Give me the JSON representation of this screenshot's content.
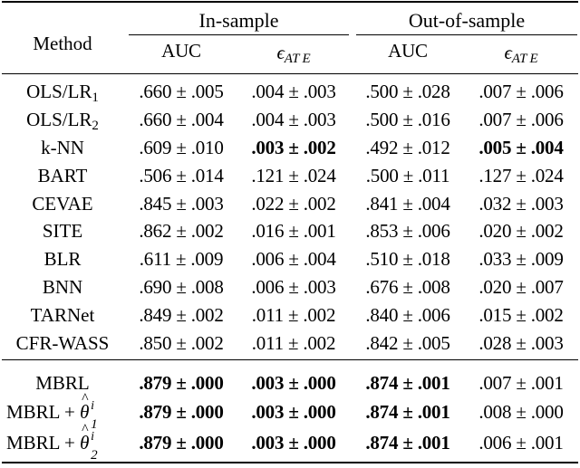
{
  "header": {
    "group_in": "In-sample",
    "group_out": "Out-of-sample",
    "method": "Method",
    "auc": "AUC",
    "eps_symbol": "ϵ",
    "eps_sub": "AT E"
  },
  "rows": [
    {
      "method": "OLS/LR",
      "method_sub": "1",
      "in_auc": ".660 ± .005",
      "in_eps": ".004 ± .003",
      "out_auc": ".500 ± .028",
      "out_eps": ".007 ± .006",
      "bold": []
    },
    {
      "method": "OLS/LR",
      "method_sub": "2",
      "in_auc": ".660 ± .004",
      "in_eps": ".004 ± .003",
      "out_auc": ".500 ± .016",
      "out_eps": ".007 ± .006",
      "bold": []
    },
    {
      "method": "k-NN",
      "method_sub": "",
      "in_auc": ".609 ± .010",
      "in_eps": ".003 ± .002",
      "out_auc": ".492 ± .012",
      "out_eps": ".005 ± .004",
      "bold": [
        "in_eps",
        "out_eps"
      ]
    },
    {
      "method": "BART",
      "method_sub": "",
      "in_auc": ".506 ± .014",
      "in_eps": ".121 ± .024",
      "out_auc": ".500 ± .011",
      "out_eps": ".127 ± .024",
      "bold": []
    },
    {
      "method": "CEVAE",
      "method_sub": "",
      "in_auc": ".845 ± .003",
      "in_eps": ".022 ± .002",
      "out_auc": ".841 ± .004",
      "out_eps": ".032 ± .003",
      "bold": []
    },
    {
      "method": "SITE",
      "method_sub": "",
      "in_auc": ".862 ± .002",
      "in_eps": ".016 ± .001",
      "out_auc": ".853 ± .006",
      "out_eps": ".020 ± .002",
      "bold": []
    },
    {
      "method": "BLR",
      "method_sub": "",
      "in_auc": ".611 ± .009",
      "in_eps": ".006 ± .004",
      "out_auc": ".510 ± .018",
      "out_eps": ".033 ± .009",
      "bold": []
    },
    {
      "method": "BNN",
      "method_sub": "",
      "in_auc": ".690 ± .008",
      "in_eps": ".006 ± .003",
      "out_auc": ".676 ± .008",
      "out_eps": ".020 ± .007",
      "bold": []
    },
    {
      "method": "TARNet",
      "method_sub": "",
      "in_auc": ".849 ± .002",
      "in_eps": ".011 ± .002",
      "out_auc": ".840 ± .006",
      "out_eps": ".015 ± .002",
      "bold": []
    },
    {
      "method": "CFR-WASS",
      "method_sub": "",
      "in_auc": ".850 ± .002",
      "in_eps": ".011 ± .002",
      "out_auc": ".842 ± .005",
      "out_eps": ".028 ± .003",
      "bold": []
    },
    {
      "method": "MBRL",
      "method_sub": "",
      "in_auc": ".879 ± .000",
      "in_eps": ".003 ± .000",
      "out_auc": ".874 ± .001",
      "out_eps": ".007 ± .001",
      "bold": [
        "in_auc",
        "in_eps",
        "out_auc"
      ]
    },
    {
      "method": "MBRL + ",
      "theta": "θ",
      "theta_sup": "i",
      "theta_sub": "1",
      "in_auc": ".879 ± .000",
      "in_eps": ".003 ± .000",
      "out_auc": ".874 ± .001",
      "out_eps": ".008 ± .000",
      "bold": [
        "in_auc",
        "in_eps",
        "out_auc"
      ]
    },
    {
      "method": "MBRL + ",
      "theta": "θ",
      "theta_sup": "i",
      "theta_sub": "2",
      "in_auc": ".879 ± .000",
      "in_eps": ".003 ± .000",
      "out_auc": ".874 ± .001",
      "out_eps": ".006 ± .001",
      "bold": [
        "in_auc",
        "in_eps",
        "out_auc"
      ]
    }
  ]
}
